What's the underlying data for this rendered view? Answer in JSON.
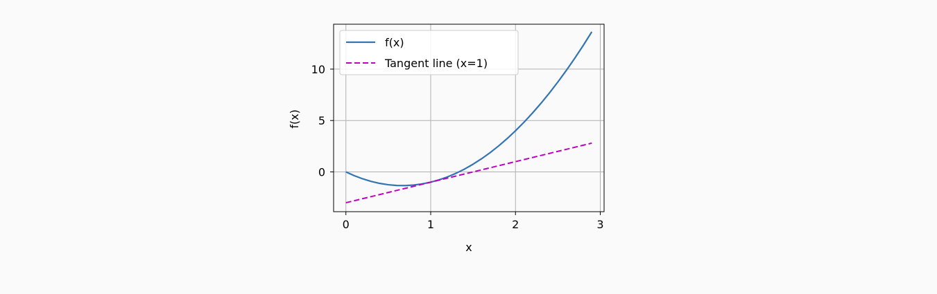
{
  "chart_data": {
    "type": "line",
    "title": "",
    "xlabel": "x",
    "ylabel": "f(x)",
    "xlim": [
      -0.145,
      3.045
    ],
    "ylim": [
      -3.87,
      14.37
    ],
    "x_ticks": [
      0,
      1,
      2,
      3
    ],
    "x_tick_labels": [
      "0",
      "1",
      "2",
      "3"
    ],
    "y_ticks": [
      0,
      5,
      10
    ],
    "y_tick_labels": [
      "0",
      "5",
      "10"
    ],
    "grid": true,
    "legend_position": "upper-left",
    "series": [
      {
        "name": "f(x)",
        "style": "solid",
        "color": "#3274b4",
        "x": [
          0,
          0.1,
          0.2,
          0.3,
          0.4,
          0.5,
          0.6,
          0.7,
          0.8,
          0.9,
          1.0,
          1.1,
          1.2,
          1.3,
          1.4,
          1.5,
          1.6,
          1.7,
          1.8,
          1.9,
          2.0,
          2.1,
          2.2,
          2.3,
          2.4,
          2.5,
          2.6,
          2.7,
          2.8,
          2.9
        ],
        "y": [
          0,
          -0.37,
          -0.68,
          -0.93,
          -1.12,
          -1.25,
          -1.32,
          -1.33,
          -1.28,
          -1.17,
          -1.0,
          -0.77,
          -0.48,
          -0.13,
          0.28,
          0.75,
          1.28,
          1.87,
          2.52,
          3.23,
          4.0,
          4.83,
          5.72,
          6.67,
          7.68,
          8.75,
          9.88,
          11.07,
          12.32,
          13.63
        ]
      },
      {
        "name": "Tangent line (x=1)",
        "style": "dashed",
        "color": "#bf00bf",
        "x": [
          0,
          2.9
        ],
        "y": [
          -3.0,
          2.8
        ]
      }
    ]
  }
}
